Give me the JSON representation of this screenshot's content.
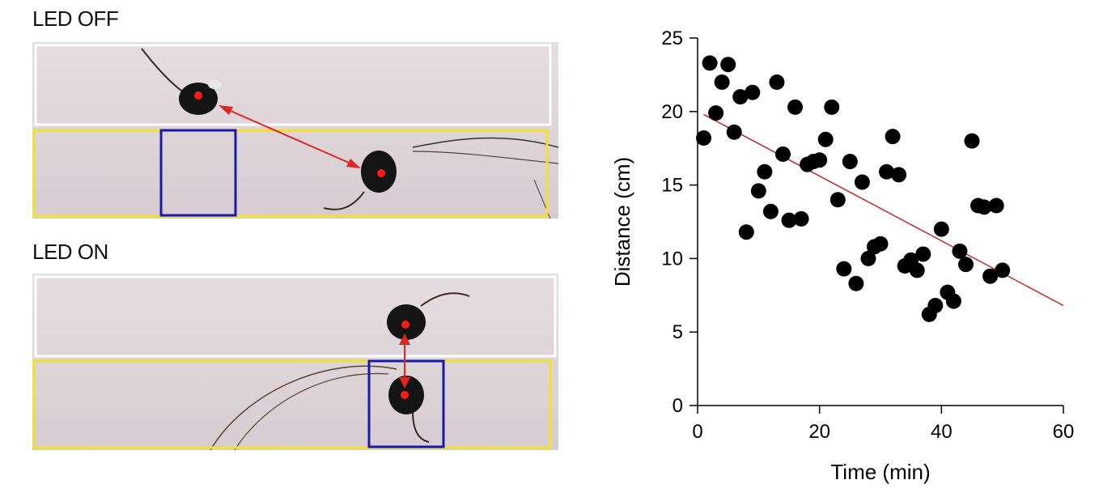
{
  "panels": {
    "top_label": "LED OFF",
    "bottom_label": "LED ON"
  },
  "colors": {
    "white_zone": "#ffffff",
    "yellow_zone": "#f2e22a",
    "blue_zone": "#1a1aa8",
    "marker": "#ff1a1a",
    "arrow": "#e02525",
    "mouse": "#141414",
    "regression": "#c0282c",
    "points": "#000000"
  },
  "chart_data": {
    "type": "scatter",
    "xlabel": "Time (min)",
    "ylabel": "Distance (cm)",
    "xlim": [
      0,
      60
    ],
    "ylim": [
      0,
      25
    ],
    "xticks": [
      0,
      20,
      40,
      60
    ],
    "yticks": [
      0,
      5,
      10,
      15,
      20,
      25
    ],
    "points": [
      [
        1,
        18.2
      ],
      [
        2,
        23.3
      ],
      [
        3,
        19.9
      ],
      [
        4,
        22.0
      ],
      [
        5,
        23.2
      ],
      [
        6,
        18.6
      ],
      [
        7,
        21.0
      ],
      [
        8,
        11.8
      ],
      [
        9,
        21.3
      ],
      [
        10,
        14.6
      ],
      [
        11,
        15.9
      ],
      [
        12,
        13.2
      ],
      [
        13,
        22.0
      ],
      [
        14,
        17.1
      ],
      [
        15,
        12.6
      ],
      [
        16,
        20.3
      ],
      [
        17,
        12.7
      ],
      [
        18,
        16.4
      ],
      [
        19,
        16.6
      ],
      [
        20,
        16.7
      ],
      [
        21,
        18.1
      ],
      [
        22,
        20.3
      ],
      [
        23,
        14.0
      ],
      [
        24,
        9.3
      ],
      [
        25,
        16.6
      ],
      [
        26,
        8.3
      ],
      [
        27,
        15.2
      ],
      [
        28,
        10.0
      ],
      [
        29,
        10.8
      ],
      [
        30,
        11.0
      ],
      [
        31,
        15.9
      ],
      [
        32,
        18.3
      ],
      [
        33,
        15.7
      ],
      [
        34,
        9.5
      ],
      [
        35,
        9.9
      ],
      [
        36,
        9.2
      ],
      [
        37,
        10.3
      ],
      [
        38,
        6.2
      ],
      [
        39,
        6.8
      ],
      [
        40,
        12.0
      ],
      [
        41,
        7.7
      ],
      [
        42,
        7.1
      ],
      [
        43,
        10.5
      ],
      [
        44,
        9.6
      ],
      [
        45,
        18.0
      ],
      [
        46,
        13.6
      ],
      [
        47,
        13.5
      ],
      [
        48,
        8.8
      ],
      [
        49,
        13.6
      ],
      [
        50,
        9.2
      ]
    ],
    "trendline": {
      "x": [
        1,
        60
      ],
      "y": [
        19.8,
        6.8
      ]
    }
  }
}
